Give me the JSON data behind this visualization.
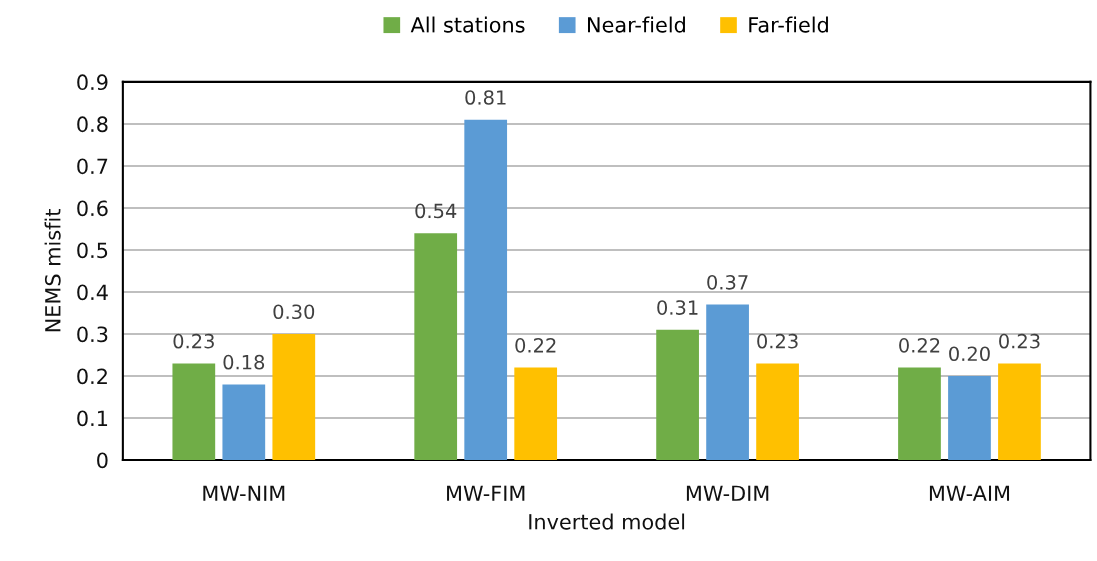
{
  "chart_data": {
    "type": "bar",
    "xlabel": "Inverted model",
    "ylabel": "NEMS misfit",
    "categories": [
      "MW-NIM",
      "MW-FIM",
      "MW-DIM",
      "MW-AIM"
    ],
    "series": [
      {
        "name": "All stations",
        "color": "#70ad47",
        "values": [
          0.23,
          0.54,
          0.31,
          0.22
        ],
        "value_labels": [
          "0.23",
          "0.54",
          "0.31",
          "0.22"
        ]
      },
      {
        "name": "Near-field",
        "color": "#5b9bd5",
        "values": [
          0.18,
          0.81,
          0.37,
          0.2
        ],
        "value_labels": [
          "0.18",
          "0.81",
          "0.37",
          "0.20"
        ]
      },
      {
        "name": "Far-field",
        "color": "#ffc000",
        "values": [
          0.3,
          0.22,
          0.23,
          0.23
        ],
        "value_labels": [
          "0.30",
          "0.22",
          "0.23",
          "0.23"
        ]
      }
    ],
    "ylim": [
      0,
      0.9
    ],
    "yticks": [
      {
        "value": 0,
        "label": "0"
      },
      0.1,
      0.2,
      0.3,
      0.4,
      0.5,
      0.6,
      0.7,
      0.8,
      0.9
    ],
    "grid": "y",
    "legend": "top"
  }
}
